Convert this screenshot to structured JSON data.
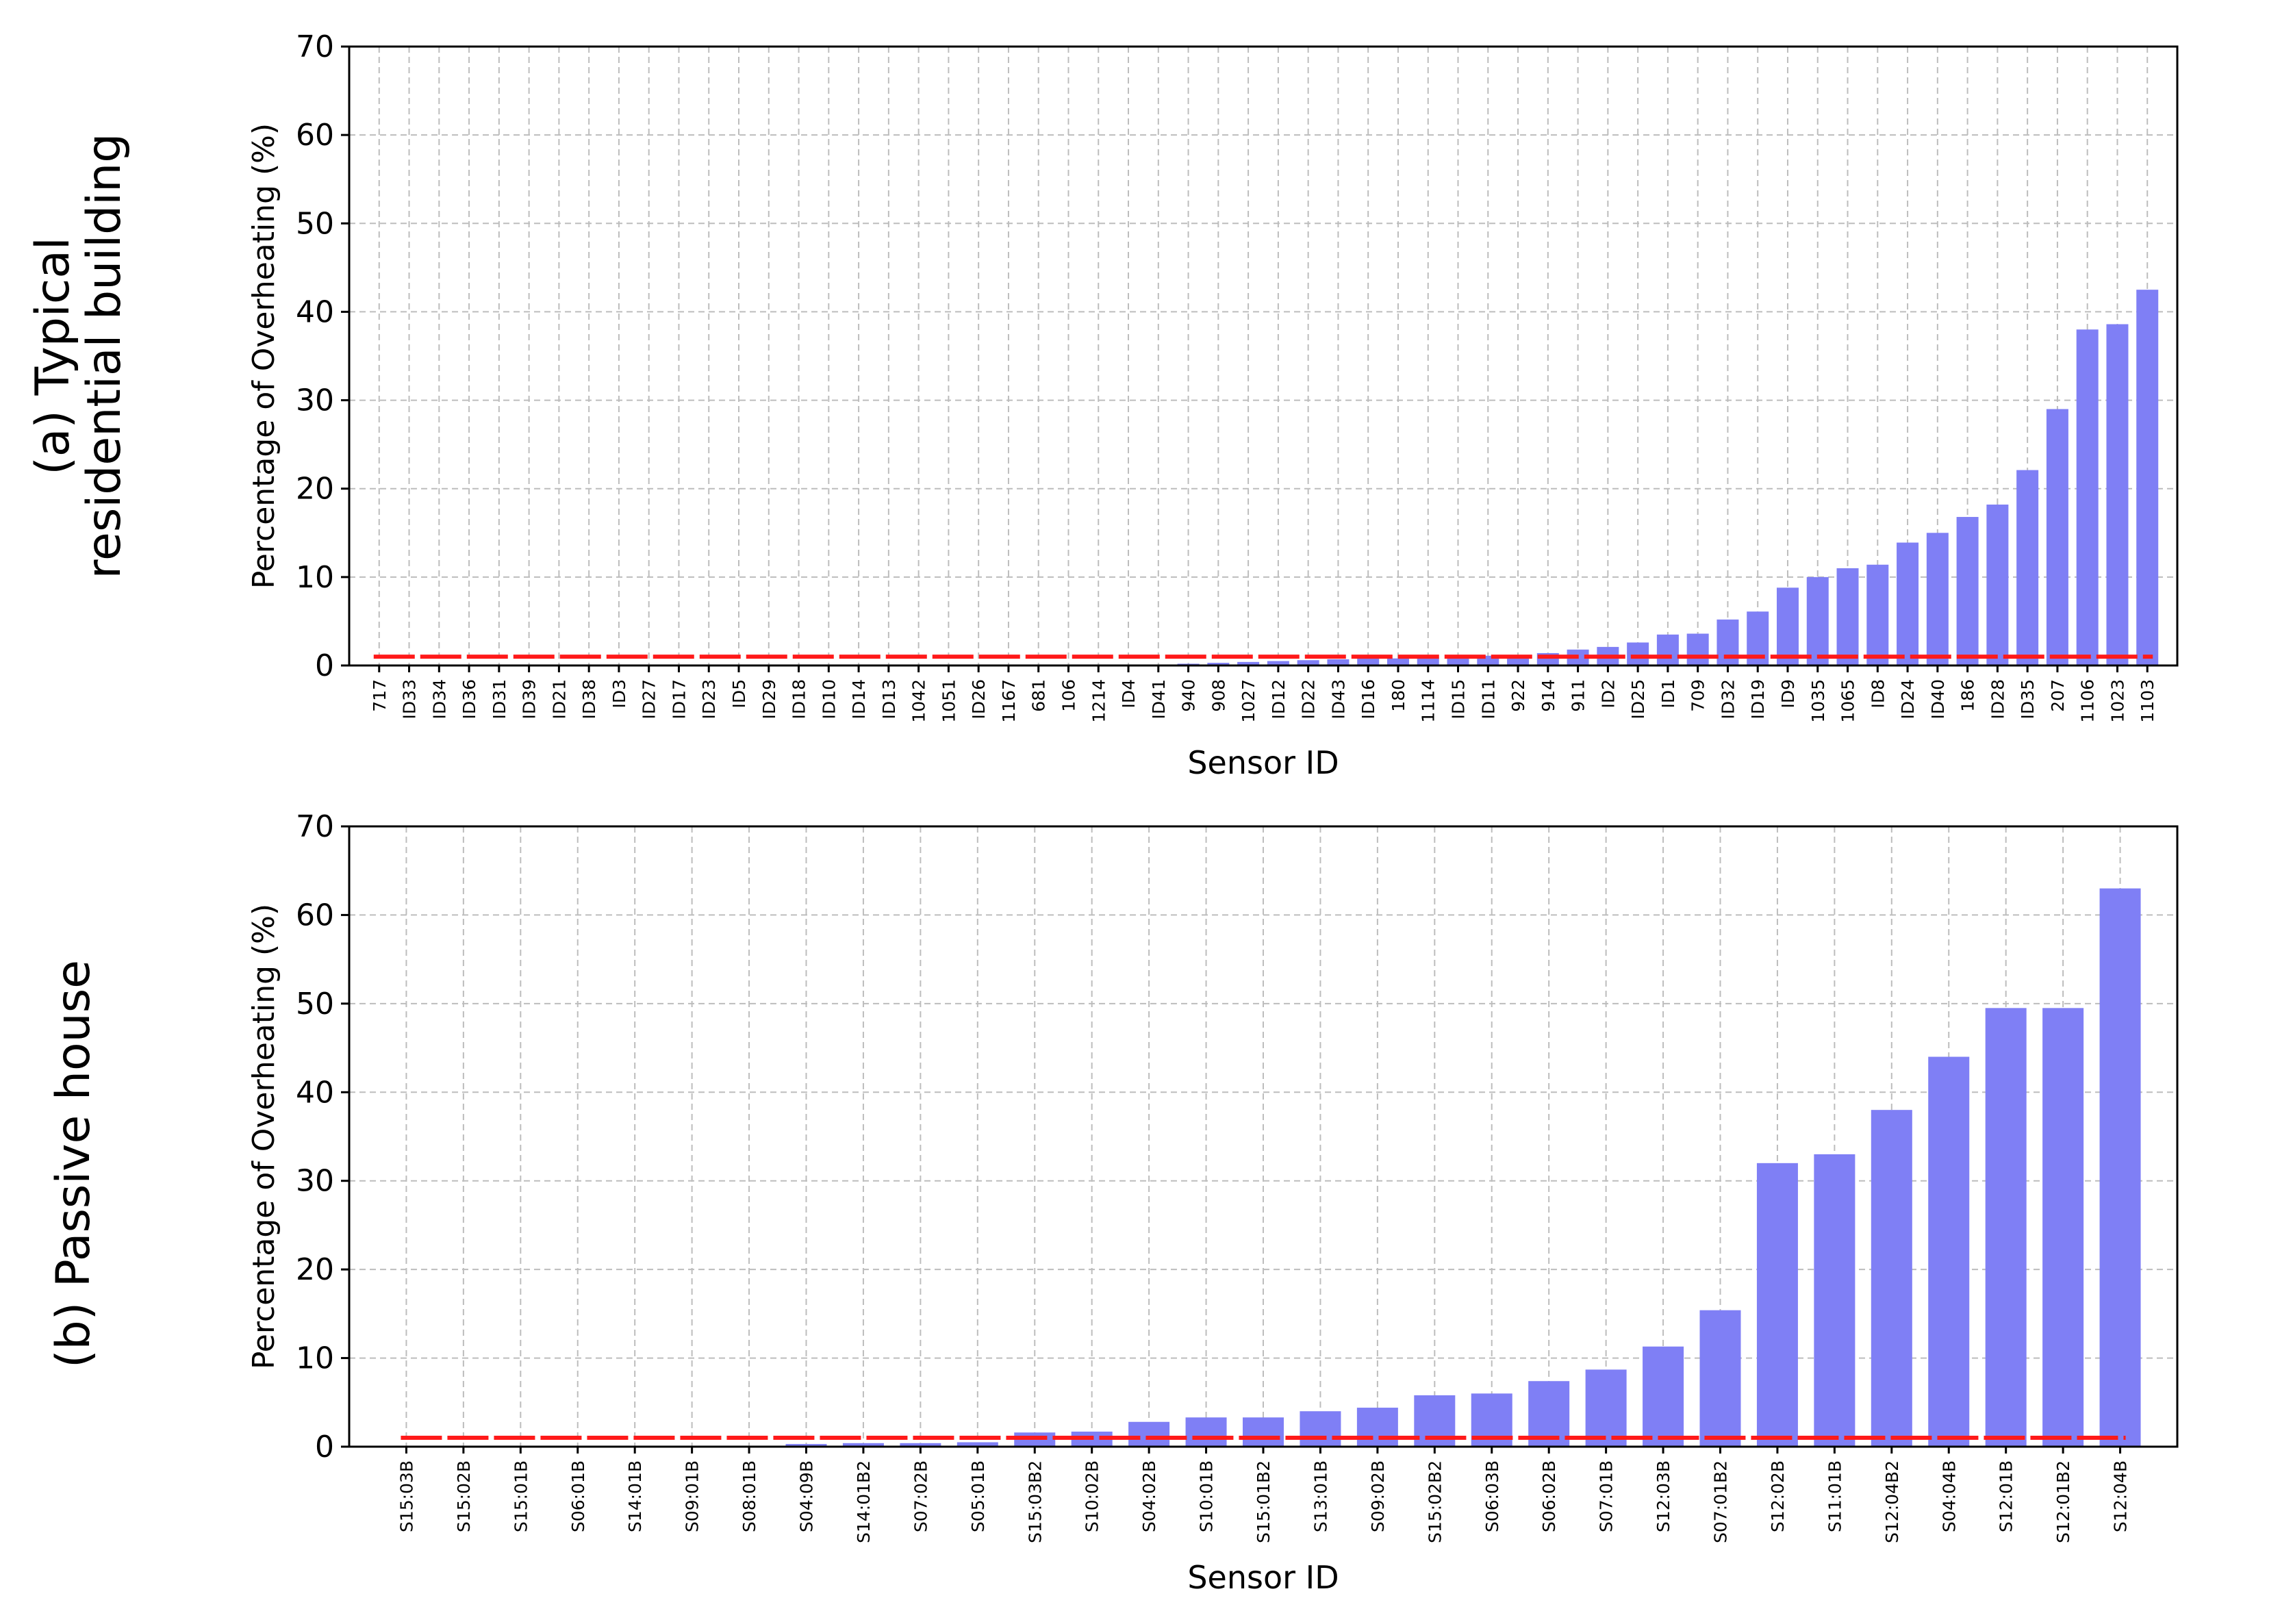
{
  "panels": [
    {
      "row_label_lines": [
        "(a)  Typical",
        "residential building"
      ]
    },
    {
      "row_label_lines": [
        "(b) Passive house"
      ]
    }
  ],
  "colors": {
    "bar": "#7f7ff5",
    "threshold": "#ff1a1a",
    "grid": "#bdbdbd",
    "axis": "#000000"
  },
  "chart_data": [
    {
      "type": "bar",
      "title": "",
      "xlabel": "Sensor ID",
      "ylabel": "Percentage of Overheating (%)",
      "ylim": [
        0,
        70
      ],
      "yticks": [
        0,
        10,
        20,
        30,
        40,
        50,
        60,
        70
      ],
      "grid": true,
      "categories": [
        "717",
        "ID33",
        "ID34",
        "ID36",
        "ID31",
        "ID39",
        "ID21",
        "ID38",
        "ID3",
        "ID27",
        "ID17",
        "ID23",
        "ID5",
        "ID29",
        "ID18",
        "ID10",
        "ID14",
        "ID13",
        "1042",
        "1051",
        "ID26",
        "1167",
        "681",
        "106",
        "1214",
        "ID4",
        "ID41",
        "940",
        "908",
        "1027",
        "ID12",
        "ID22",
        "ID43",
        "ID16",
        "180",
        "1114",
        "ID15",
        "ID11",
        "922",
        "914",
        "911",
        "ID2",
        "ID25",
        "ID1",
        "709",
        "ID32",
        "ID19",
        "ID9",
        "1035",
        "1065",
        "ID8",
        "ID24",
        "ID40",
        "186",
        "ID28",
        "ID35",
        "207",
        "1106",
        "1023",
        "1103"
      ],
      "values": [
        0,
        0,
        0,
        0,
        0,
        0,
        0,
        0,
        0,
        0,
        0,
        0,
        0,
        0,
        0,
        0,
        0,
        0,
        0,
        0,
        0,
        0,
        0,
        0,
        0,
        0,
        0,
        0.2,
        0.3,
        0.4,
        0.5,
        0.6,
        0.7,
        0.8,
        0.8,
        0.9,
        1.0,
        1.1,
        1.2,
        1.4,
        1.8,
        2.1,
        2.6,
        3.5,
        3.6,
        5.2,
        6.1,
        8.8,
        10.0,
        11.0,
        11.4,
        13.9,
        15.0,
        16.8,
        18.2,
        22.1,
        29.0,
        38.0,
        38.6,
        42.5
      ],
      "threshold": 1
    },
    {
      "type": "bar",
      "title": "",
      "xlabel": "Sensor ID",
      "ylabel": "Percentage of Overheating (%)",
      "ylim": [
        0,
        70
      ],
      "yticks": [
        0,
        10,
        20,
        30,
        40,
        50,
        60,
        70
      ],
      "grid": true,
      "categories": [
        "S15:03B",
        "S15:02B",
        "S15:01B",
        "S06:01B",
        "S14:01B",
        "S09:01B",
        "S08:01B",
        "S04:09B",
        "S14:01B2",
        "S07:02B",
        "S05:01B",
        "S15:03B2",
        "S10:02B",
        "S04:02B",
        "S10:01B",
        "S15:01B2",
        "S13:01B",
        "S09:02B",
        "S15:02B2",
        "S06:03B",
        "S06:02B",
        "S07:01B",
        "S12:03B",
        "S07:01B2",
        "S12:02B",
        "S11:01B",
        "S12:04B2",
        "S04:04B",
        "S12:01B",
        "S12:01B2",
        "S12:04B"
      ],
      "values": [
        0,
        0,
        0,
        0,
        0,
        0,
        0,
        0.3,
        0.4,
        0.4,
        0.5,
        1.6,
        1.7,
        2.8,
        3.3,
        3.3,
        4.0,
        4.4,
        5.8,
        6.0,
        7.4,
        8.7,
        11.3,
        15.4,
        32.0,
        33.0,
        38.0,
        44.0,
        49.5,
        49.5,
        63.0
      ],
      "threshold": 1
    }
  ]
}
